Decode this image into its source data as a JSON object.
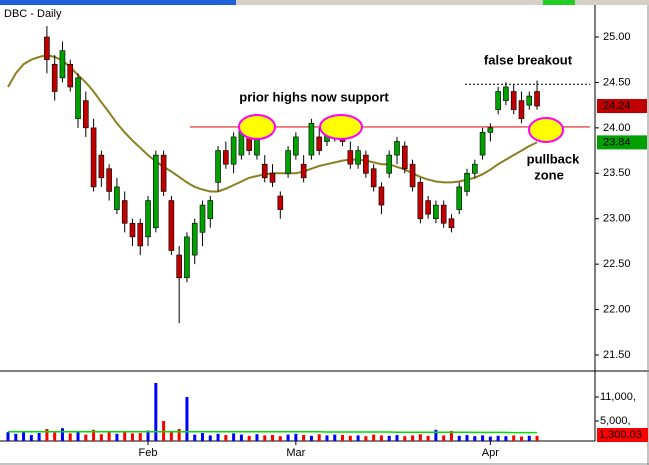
{
  "chart_data": {
    "type": "candlestick",
    "title": "DBC - Daily",
    "categories": [
      null,
      null,
      null,
      null,
      null,
      null,
      null,
      null,
      null,
      null,
      null,
      null,
      null,
      null,
      null,
      null,
      null,
      null,
      "Feb",
      null,
      null,
      null,
      null,
      null,
      null,
      null,
      null,
      null,
      null,
      null,
      null,
      null,
      null,
      null,
      null,
      null,
      null,
      "Mar",
      null,
      null,
      null,
      null,
      null,
      null,
      null,
      null,
      null,
      null,
      null,
      null,
      null,
      null,
      null,
      null,
      null,
      null,
      null,
      null,
      null,
      null,
      null,
      null,
      "Apr",
      null,
      null,
      null,
      null,
      null,
      null
    ],
    "open": [
      null,
      null,
      null,
      null,
      null,
      25.0,
      24.7,
      24.55,
      24.7,
      24.1,
      24.3,
      24.0,
      23.7,
      23.55,
      23.1,
      23.2,
      22.95,
      22.95,
      22.8,
      22.9,
      23.7,
      23.2,
      22.6,
      22.35,
      22.6,
      22.85,
      23.0,
      23.4,
      23.75,
      23.6,
      23.7,
      23.95,
      23.7,
      23.6,
      23.5,
      23.25,
      23.5,
      23.7,
      23.6,
      23.7,
      23.9,
      23.85,
      23.9,
      24.0,
      23.75,
      23.6,
      23.7,
      23.55,
      23.35,
      23.5,
      23.7,
      23.8,
      23.6,
      23.4,
      23.2,
      23.0,
      23.15,
      23.0,
      23.1,
      23.3,
      23.5,
      23.7,
      23.95,
      24.2,
      24.3,
      24.4,
      24.3,
      24.25,
      24.4
    ],
    "high": [
      null,
      null,
      null,
      null,
      null,
      25.12,
      24.8,
      24.95,
      24.75,
      24.6,
      24.4,
      24.1,
      23.75,
      23.6,
      23.45,
      23.3,
      23.0,
      23.0,
      23.25,
      23.75,
      23.75,
      23.25,
      22.7,
      22.85,
      23.0,
      23.2,
      23.25,
      23.8,
      23.85,
      23.95,
      24.05,
      24.05,
      24.1,
      23.7,
      23.6,
      23.3,
      23.8,
      23.95,
      23.7,
      24.1,
      24.0,
      24.05,
      24.1,
      24.05,
      23.85,
      23.8,
      23.75,
      23.6,
      23.4,
      23.75,
      23.9,
      23.85,
      23.65,
      23.45,
      23.25,
      23.2,
      23.2,
      23.05,
      23.4,
      23.55,
      23.65,
      24.0,
      24.05,
      24.45,
      24.5,
      24.48,
      24.4,
      24.4,
      24.52
    ],
    "low": [
      null,
      null,
      null,
      null,
      null,
      24.6,
      24.3,
      24.5,
      24.4,
      24.0,
      23.9,
      23.3,
      23.35,
      23.2,
      23.05,
      22.85,
      22.7,
      22.6,
      22.7,
      22.85,
      23.25,
      22.6,
      21.85,
      22.3,
      22.5,
      22.7,
      22.9,
      23.3,
      23.55,
      23.5,
      23.65,
      23.7,
      23.65,
      23.4,
      23.35,
      23.0,
      23.45,
      23.65,
      23.4,
      23.65,
      23.7,
      23.8,
      23.85,
      23.8,
      23.55,
      23.55,
      23.45,
      23.3,
      23.05,
      23.45,
      23.6,
      23.5,
      23.3,
      22.95,
      23.0,
      22.95,
      22.9,
      22.85,
      23.05,
      23.25,
      23.45,
      23.65,
      23.85,
      24.15,
      24.25,
      24.15,
      24.05,
      24.2,
      24.2
    ],
    "close": [
      null,
      null,
      null,
      null,
      null,
      24.75,
      24.4,
      24.85,
      24.45,
      24.55,
      24.0,
      23.35,
      23.45,
      23.3,
      23.35,
      22.95,
      22.8,
      22.7,
      23.2,
      23.7,
      23.3,
      22.65,
      22.35,
      22.8,
      22.95,
      23.15,
      23.2,
      23.75,
      23.6,
      23.9,
      24.0,
      23.75,
      24.05,
      23.45,
      23.4,
      23.1,
      23.75,
      23.9,
      23.45,
      24.05,
      23.75,
      24.0,
      24.05,
      23.85,
      23.6,
      23.75,
      23.5,
      23.35,
      23.15,
      23.7,
      23.85,
      23.55,
      23.35,
      23.0,
      23.05,
      23.15,
      22.95,
      22.9,
      23.35,
      23.5,
      23.6,
      23.95,
      24.0,
      24.4,
      24.45,
      24.2,
      24.1,
      24.35,
      24.24
    ],
    "up_color": "#00a000",
    "down_color": "#c00000",
    "moving_average": {
      "color": "#8b8020",
      "values": [
        24.45,
        24.6,
        24.7,
        24.75,
        24.78,
        24.8,
        24.78,
        24.74,
        24.67,
        24.58,
        24.5,
        24.4,
        24.28,
        24.17,
        24.05,
        23.95,
        23.86,
        23.78,
        23.7,
        23.63,
        23.57,
        23.52,
        23.46,
        23.4,
        23.35,
        23.32,
        23.3,
        23.3,
        23.33,
        23.37,
        23.41,
        23.45,
        23.47,
        23.49,
        23.5,
        23.5,
        23.5,
        23.5,
        23.52,
        23.55,
        23.58,
        23.6,
        23.62,
        23.64,
        23.65,
        23.65,
        23.64,
        23.62,
        23.6,
        23.6,
        23.57,
        23.54,
        23.5,
        23.46,
        23.43,
        23.41,
        23.4,
        23.4,
        23.41,
        23.43,
        23.45,
        23.49,
        23.54,
        23.6,
        23.65,
        23.7,
        23.75,
        23.8,
        23.84
      ]
    },
    "ylim": [
      21.335,
      25.363
    ],
    "yticks": [
      {
        "value": 21.5,
        "label": "21.50"
      },
      {
        "value": 22.0,
        "label": "22.00"
      },
      {
        "value": 22.5,
        "label": "22.50"
      },
      {
        "value": 23.0,
        "label": "23.00"
      },
      {
        "value": 23.5,
        "label": "23.50"
      },
      {
        "value": 24.0,
        "label": "24.00"
      },
      {
        "value": 24.5,
        "label": "24.50"
      },
      {
        "value": 25.0,
        "label": "25.00"
      }
    ],
    "last_price_label": "24.24",
    "last_ma_label": "23.84",
    "support_level": 24.01,
    "support_color": "#e02020",
    "breakout_level": 24.48,
    "annotations": [
      "prior highs now support",
      "false breakout",
      "pullback",
      "zone"
    ],
    "volume": {
      "values": [
        2200000,
        1800000,
        2500000,
        1500000,
        2000000,
        3000000,
        2100000,
        3200000,
        1900000,
        2400000,
        1600000,
        2800000,
        1700000,
        2200000,
        1800000,
        2500000,
        1900000,
        2000000,
        2600000,
        14500000,
        5000000,
        2200000,
        3000000,
        11000000,
        1600000,
        2000000,
        1400000,
        1800000,
        1500000,
        1900000,
        1600000,
        1300000,
        1700000,
        1400000,
        1500000,
        1200000,
        1600000,
        1800000,
        1500000,
        1300000,
        1700000,
        1400000,
        1600000,
        1500000,
        1300000,
        1400000,
        1200000,
        1600000,
        1400000,
        1300000,
        1500000,
        1200000,
        1400000,
        1700000,
        1300000,
        2800000,
        1400000,
        2500000,
        1300000,
        1500000,
        1200000,
        1400000,
        1100000,
        1300000,
        1200000,
        1400000,
        1100000,
        1300000,
        1300030
      ],
      "up_color": "#0000ff",
      "down_color": "#ff0000",
      "ma_color": "#00dd00",
      "ma_values": [
        2300000,
        2300000,
        2300000,
        2300000,
        2300000,
        2300000,
        2300000,
        2300000,
        2300000,
        2300000,
        2300000,
        2300000,
        2300000,
        2300000,
        2300000,
        2300000,
        2300000,
        2300000,
        2300000,
        2300000,
        2300000,
        2300000,
        2300000,
        2300000,
        2300000,
        2300000,
        2300000,
        2300000,
        2300000,
        2300000,
        2300000,
        2300000,
        2300000,
        2300000,
        2300000,
        2300000,
        2300000,
        2300000,
        2300000,
        2300000,
        2300000,
        2250000,
        2250000,
        2250000,
        2250000,
        2250000,
        2250000,
        2250000,
        2250000,
        2250000,
        2200000,
        2200000,
        2200000,
        2200000,
        2200000,
        2200000,
        2200000,
        2200000,
        2200000,
        2200000,
        2150000,
        2150000,
        2150000,
        2150000,
        2150000,
        2100000,
        2100000,
        2100000,
        2100000
      ],
      "ylim": [
        0,
        17250000
      ],
      "yticks": [
        {
          "value": 11000000,
          "label": "11,000,"
        },
        {
          "value": 5000000,
          "label": "5,000,"
        }
      ],
      "last_label": "1,300,03"
    }
  }
}
